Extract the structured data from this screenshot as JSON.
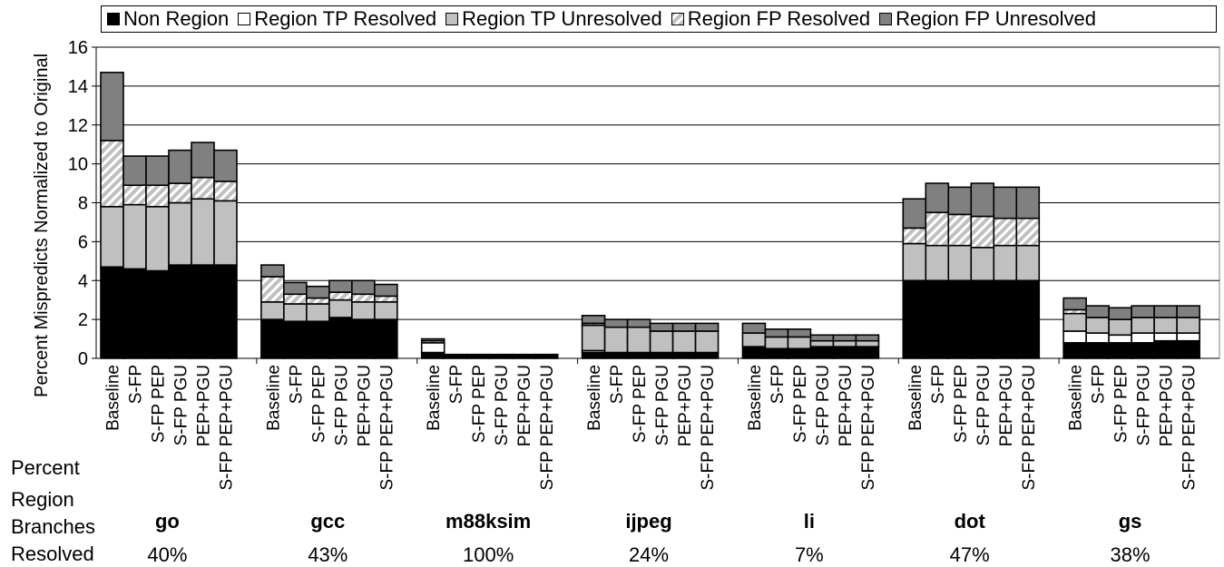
{
  "chart_data": {
    "type": "bar",
    "stacked": true,
    "ylabel": "Percent Mispredicts  Normalized to Original",
    "ylim": [
      0,
      16
    ],
    "yticks": [
      "0",
      "2",
      "4",
      "6",
      "8",
      "10",
      "12",
      "14",
      "16"
    ],
    "grid": true,
    "legend_position": "top",
    "segments": [
      {
        "name": "Non Region",
        "color": "#000000",
        "pattern": "solid"
      },
      {
        "name": "Region TP Resolved",
        "color": "#ffffff",
        "pattern": "solid"
      },
      {
        "name": "Region TP Unresolved",
        "color": "#c0c0c0",
        "pattern": "solid"
      },
      {
        "name": "Region FP Resolved",
        "color": "#c0c0c0",
        "pattern": "hatch"
      },
      {
        "name": "Region FP Unresolved",
        "color": "#808080",
        "pattern": "solid"
      }
    ],
    "side_label": [
      "Percent",
      "Region",
      "Branches",
      "Resolved"
    ],
    "groups": [
      {
        "name": "go",
        "pct": "40%",
        "bars": [
          {
            "label": "Baseline",
            "values": [
              4.7,
              0.0,
              3.1,
              3.4,
              3.5
            ]
          },
          {
            "label": "S-FP",
            "values": [
              4.6,
              0.0,
              3.3,
              1.0,
              1.5
            ]
          },
          {
            "label": "S-FP PEP",
            "values": [
              4.5,
              0.0,
              3.3,
              1.1,
              1.5
            ]
          },
          {
            "label": "S-FP PGU",
            "values": [
              4.8,
              0.0,
              3.2,
              1.0,
              1.7
            ]
          },
          {
            "label": "PEP+PGU",
            "values": [
              4.8,
              0.0,
              3.4,
              1.1,
              1.8
            ]
          },
          {
            "label": "S-FP PEP+PGU",
            "values": [
              4.8,
              0.0,
              3.3,
              1.0,
              1.6
            ]
          }
        ]
      },
      {
        "name": "gcc",
        "pct": "43%",
        "bars": [
          {
            "label": "Baseline",
            "values": [
              2.0,
              0.0,
              0.9,
              1.3,
              0.6
            ]
          },
          {
            "label": "S-FP",
            "values": [
              1.9,
              0.0,
              0.9,
              0.5,
              0.6
            ]
          },
          {
            "label": "S-FP PEP",
            "values": [
              1.9,
              0.0,
              0.9,
              0.3,
              0.6
            ]
          },
          {
            "label": "S-FP PGU",
            "values": [
              2.1,
              0.0,
              0.9,
              0.4,
              0.6
            ]
          },
          {
            "label": "PEP+PGU",
            "values": [
              2.0,
              0.0,
              0.9,
              0.4,
              0.7
            ]
          },
          {
            "label": "S-FP PEP+PGU",
            "values": [
              2.0,
              0.0,
              0.9,
              0.3,
              0.6
            ]
          }
        ]
      },
      {
        "name": "m88ksim",
        "pct": "100%",
        "bars": [
          {
            "label": "Baseline",
            "values": [
              0.3,
              0.5,
              0.0,
              0.1,
              0.1
            ]
          },
          {
            "label": "S-FP",
            "values": [
              0.2,
              0.0,
              0.0,
              0.0,
              0.0
            ]
          },
          {
            "label": "S-FP PEP",
            "values": [
              0.2,
              0.0,
              0.0,
              0.0,
              0.0
            ]
          },
          {
            "label": "S-FP PGU",
            "values": [
              0.2,
              0.0,
              0.0,
              0.0,
              0.0
            ]
          },
          {
            "label": "PEP+PGU",
            "values": [
              0.2,
              0.0,
              0.0,
              0.0,
              0.0
            ]
          },
          {
            "label": "S-FP PEP+PGU",
            "values": [
              0.2,
              0.0,
              0.0,
              0.0,
              0.0
            ]
          }
        ]
      },
      {
        "name": "ijpeg",
        "pct": "24%",
        "bars": [
          {
            "label": "Baseline",
            "values": [
              0.3,
              0.1,
              1.3,
              0.1,
              0.4
            ]
          },
          {
            "label": "S-FP",
            "values": [
              0.3,
              0.0,
              1.3,
              0.0,
              0.4
            ]
          },
          {
            "label": "S-FP PEP",
            "values": [
              0.3,
              0.0,
              1.3,
              0.0,
              0.4
            ]
          },
          {
            "label": "S-FP PGU",
            "values": [
              0.3,
              0.0,
              1.1,
              0.0,
              0.4
            ]
          },
          {
            "label": "PEP+PGU",
            "values": [
              0.3,
              0.0,
              1.1,
              0.0,
              0.4
            ]
          },
          {
            "label": "S-FP PEP+PGU",
            "values": [
              0.3,
              0.0,
              1.1,
              0.0,
              0.4
            ]
          }
        ]
      },
      {
        "name": "li",
        "pct": "7%",
        "bars": [
          {
            "label": "Baseline",
            "values": [
              0.6,
              0.0,
              0.7,
              0.0,
              0.5
            ]
          },
          {
            "label": "S-FP",
            "values": [
              0.5,
              0.0,
              0.6,
              0.0,
              0.4
            ]
          },
          {
            "label": "S-FP PEP",
            "values": [
              0.5,
              0.0,
              0.6,
              0.0,
              0.4
            ]
          },
          {
            "label": "S-FP PGU",
            "values": [
              0.6,
              0.0,
              0.3,
              0.0,
              0.3
            ]
          },
          {
            "label": "PEP+PGU",
            "values": [
              0.6,
              0.0,
              0.3,
              0.0,
              0.3
            ]
          },
          {
            "label": "S-FP PEP+PGU",
            "values": [
              0.6,
              0.0,
              0.3,
              0.0,
              0.3
            ]
          }
        ]
      },
      {
        "name": "dot",
        "pct": "47%",
        "bars": [
          {
            "label": "Baseline",
            "values": [
              4.0,
              0.0,
              1.9,
              0.8,
              1.5
            ]
          },
          {
            "label": "S-FP",
            "values": [
              4.0,
              0.0,
              1.8,
              1.7,
              1.5
            ]
          },
          {
            "label": "S-FP PEP",
            "values": [
              4.0,
              0.0,
              1.8,
              1.6,
              1.4
            ]
          },
          {
            "label": "S-FP PGU",
            "values": [
              4.0,
              0.0,
              1.7,
              1.6,
              1.7
            ]
          },
          {
            "label": "PEP+PGU",
            "values": [
              4.0,
              0.0,
              1.8,
              1.4,
              1.6
            ]
          },
          {
            "label": "S-FP PEP+PGU",
            "values": [
              4.0,
              0.0,
              1.8,
              1.4,
              1.6
            ]
          }
        ]
      },
      {
        "name": "gs",
        "pct": "38%",
        "bars": [
          {
            "label": "Baseline",
            "values": [
              0.8,
              0.6,
              0.9,
              0.2,
              0.6
            ]
          },
          {
            "label": "S-FP",
            "values": [
              0.8,
              0.5,
              0.8,
              0.0,
              0.6
            ]
          },
          {
            "label": "S-FP PEP",
            "values": [
              0.8,
              0.4,
              0.8,
              0.0,
              0.6
            ]
          },
          {
            "label": "S-FP PGU",
            "values": [
              0.8,
              0.5,
              0.8,
              0.0,
              0.6
            ]
          },
          {
            "label": "PEP+PGU",
            "values": [
              0.9,
              0.4,
              0.8,
              0.0,
              0.6
            ]
          },
          {
            "label": "S-FP PEP+PGU",
            "values": [
              0.9,
              0.4,
              0.8,
              0.0,
              0.6
            ]
          }
        ]
      }
    ]
  }
}
